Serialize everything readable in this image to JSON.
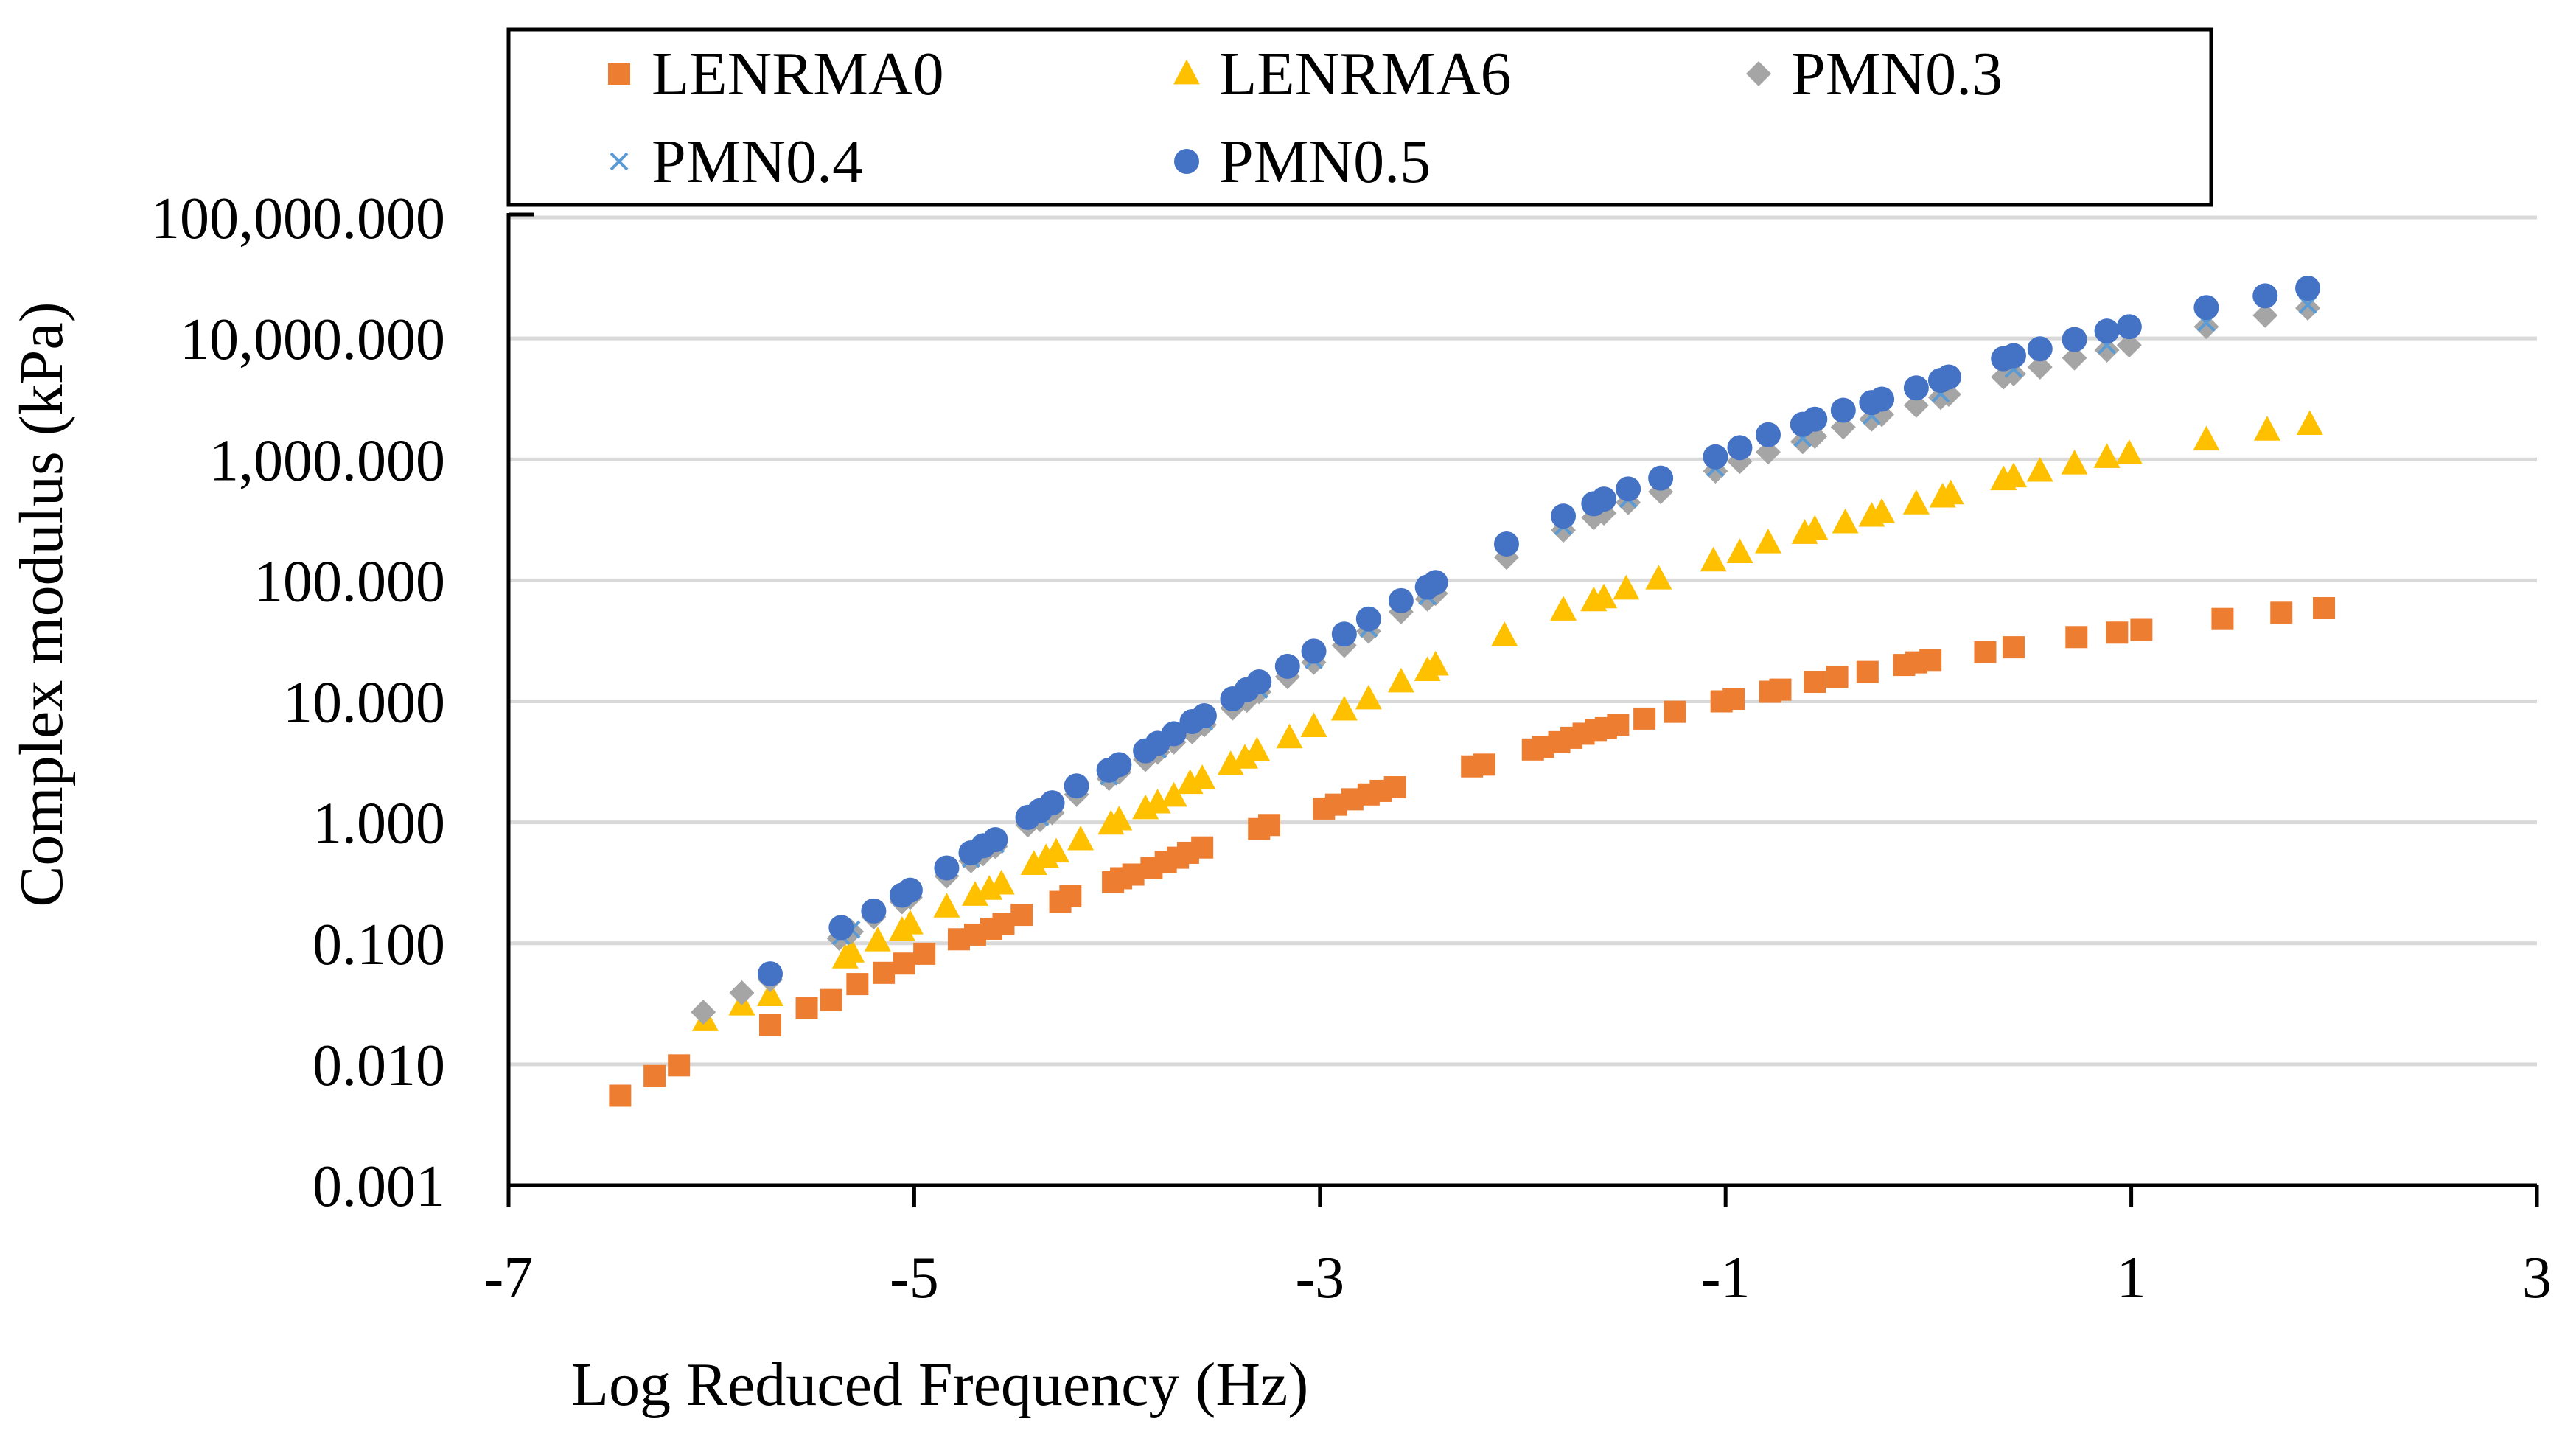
{
  "chart_data": {
    "type": "scatter",
    "title": "",
    "xlabel": "Log Reduced Frequency (Hz)",
    "ylabel": "Complex modulus (kPa)",
    "xlim": [
      -7,
      3
    ],
    "ylim": [
      0.001,
      100000
    ],
    "y_scale": "log",
    "grid": "horizontal",
    "legend_position": "top",
    "x_ticks": [
      -7,
      -5,
      -3,
      -1,
      1,
      3
    ],
    "x_tick_labels": [
      "-7",
      "-5",
      "-3",
      "-1",
      "1",
      "3"
    ],
    "y_ticks": [
      0.001,
      0.01,
      0.1,
      1,
      10,
      100,
      1000,
      10000,
      100000
    ],
    "y_tick_labels": [
      "0.001",
      "0.010",
      "0.100",
      "1.000",
      "10.000",
      "100.000",
      "1,000.000",
      "10,000.000",
      "100,000.000"
    ],
    "series": [
      {
        "name": "LENRMA0",
        "marker": "square",
        "color": "#ED7D31",
        "points": [
          [
            -6.45,
            0.0055
          ],
          [
            -6.28,
            0.008
          ],
          [
            -6.16,
            0.0098
          ],
          [
            -5.71,
            0.021
          ],
          [
            -5.53,
            0.029
          ],
          [
            -5.41,
            0.034
          ],
          [
            -5.28,
            0.046
          ],
          [
            -5.15,
            0.057
          ],
          [
            -5.05,
            0.068
          ],
          [
            -4.95,
            0.082
          ],
          [
            -4.78,
            0.108
          ],
          [
            -4.7,
            0.118
          ],
          [
            -4.62,
            0.132
          ],
          [
            -4.56,
            0.145
          ],
          [
            -4.47,
            0.172
          ],
          [
            -4.28,
            0.22
          ],
          [
            -4.23,
            0.245
          ],
          [
            -4.02,
            0.32
          ],
          [
            -3.98,
            0.345
          ],
          [
            -3.92,
            0.37
          ],
          [
            -3.83,
            0.42
          ],
          [
            -3.76,
            0.47
          ],
          [
            -3.7,
            0.51
          ],
          [
            -3.65,
            0.56
          ],
          [
            -3.58,
            0.62
          ],
          [
            -3.3,
            0.88
          ],
          [
            -3.25,
            0.95
          ],
          [
            -2.98,
            1.3
          ],
          [
            -2.92,
            1.4
          ],
          [
            -2.84,
            1.55
          ],
          [
            -2.76,
            1.7
          ],
          [
            -2.7,
            1.82
          ],
          [
            -2.63,
            1.95
          ],
          [
            -2.25,
            2.9
          ],
          [
            -2.19,
            3.0
          ],
          [
            -1.95,
            4.0
          ],
          [
            -1.9,
            4.2
          ],
          [
            -1.82,
            4.6
          ],
          [
            -1.76,
            5.0
          ],
          [
            -1.7,
            5.4
          ],
          [
            -1.64,
            5.8
          ],
          [
            -1.59,
            6.0
          ],
          [
            -1.53,
            6.4
          ],
          [
            -1.4,
            7.2
          ],
          [
            -1.25,
            8.2
          ],
          [
            -1.02,
            10.0
          ],
          [
            -0.96,
            10.5
          ],
          [
            -0.78,
            12.0
          ],
          [
            -0.73,
            12.5
          ],
          [
            -0.56,
            14.5
          ],
          [
            -0.45,
            16.0
          ],
          [
            -0.3,
            17.5
          ],
          [
            -0.12,
            20.0
          ],
          [
            -0.06,
            21.0
          ],
          [
            0.01,
            22.0
          ],
          [
            0.28,
            25.5
          ],
          [
            0.42,
            28.0
          ],
          [
            0.73,
            34.0
          ],
          [
            0.93,
            37.0
          ],
          [
            1.05,
            39.0
          ],
          [
            1.45,
            48.0
          ],
          [
            1.74,
            54.0
          ],
          [
            1.95,
            59.0
          ]
        ]
      },
      {
        "name": "LENRMA6",
        "marker": "triangle",
        "color": "#FFC000",
        "points": [
          [
            -6.03,
            0.023
          ],
          [
            -5.85,
            0.031
          ],
          [
            -5.71,
            0.037
          ],
          [
            -5.34,
            0.076
          ],
          [
            -5.31,
            0.085
          ],
          [
            -5.18,
            0.105
          ],
          [
            -5.06,
            0.128
          ],
          [
            -5.02,
            0.145
          ],
          [
            -4.84,
            0.2
          ],
          [
            -4.7,
            0.25
          ],
          [
            -4.63,
            0.28
          ],
          [
            -4.57,
            0.31
          ],
          [
            -4.41,
            0.45
          ],
          [
            -4.35,
            0.51
          ],
          [
            -4.3,
            0.57
          ],
          [
            -4.18,
            0.72
          ],
          [
            -4.03,
            0.97
          ],
          [
            -3.99,
            1.05
          ],
          [
            -3.86,
            1.3
          ],
          [
            -3.8,
            1.45
          ],
          [
            -3.72,
            1.65
          ],
          [
            -3.64,
            2.1
          ],
          [
            -3.58,
            2.3
          ],
          [
            -3.44,
            3.0
          ],
          [
            -3.37,
            3.4
          ],
          [
            -3.31,
            3.9
          ],
          [
            -3.15,
            5.0
          ],
          [
            -3.03,
            6.2
          ],
          [
            -2.88,
            8.5
          ],
          [
            -2.76,
            10.5
          ],
          [
            -2.6,
            14.5
          ],
          [
            -2.47,
            18.0
          ],
          [
            -2.43,
            20.0
          ],
          [
            -2.09,
            35.0
          ],
          [
            -1.8,
            57.0
          ],
          [
            -1.65,
            68.0
          ],
          [
            -1.6,
            72.0
          ],
          [
            -1.49,
            85.0
          ],
          [
            -1.33,
            103.0
          ],
          [
            -1.06,
            145.0
          ],
          [
            -0.93,
            170.0
          ],
          [
            -0.79,
            205.0
          ],
          [
            -0.61,
            245.0
          ],
          [
            -0.56,
            265.0
          ],
          [
            -0.41,
            300.0
          ],
          [
            -0.28,
            340.0
          ],
          [
            -0.23,
            365.0
          ],
          [
            -0.06,
            430.0
          ],
          [
            0.07,
            490.0
          ],
          [
            0.11,
            520.0
          ],
          [
            0.37,
            680.0
          ],
          [
            0.42,
            720.0
          ],
          [
            0.55,
            800.0
          ],
          [
            0.72,
            920.0
          ],
          [
            0.88,
            1040.0
          ],
          [
            0.99,
            1120.0
          ],
          [
            1.37,
            1450.0
          ],
          [
            1.67,
            1750.0
          ],
          [
            1.88,
            1950.0
          ]
        ]
      },
      {
        "name": "PMN0.3",
        "marker": "diamond",
        "color": "#A5A5A5",
        "points": [
          [
            -6.04,
            0.027
          ],
          [
            -5.85,
            0.039
          ],
          [
            -5.71,
            0.05
          ],
          [
            -5.37,
            0.11
          ],
          [
            -5.31,
            0.125
          ],
          [
            -5.2,
            0.165
          ],
          [
            -5.06,
            0.22
          ],
          [
            -5.02,
            0.24
          ],
          [
            -4.84,
            0.36
          ],
          [
            -4.72,
            0.48
          ],
          [
            -4.66,
            0.55
          ],
          [
            -4.6,
            0.63
          ],
          [
            -4.44,
            0.95
          ],
          [
            -4.38,
            1.05
          ],
          [
            -4.32,
            1.2
          ],
          [
            -4.2,
            1.7
          ],
          [
            -4.04,
            2.3
          ],
          [
            -3.99,
            2.6
          ],
          [
            -3.86,
            3.3
          ],
          [
            -3.8,
            3.8
          ],
          [
            -3.72,
            4.6
          ],
          [
            -3.63,
            5.6
          ],
          [
            -3.57,
            6.4
          ],
          [
            -3.43,
            8.8
          ],
          [
            -3.36,
            10.2
          ],
          [
            -3.3,
            12.0
          ],
          [
            -3.16,
            16.0
          ],
          [
            -3.03,
            21.0
          ],
          [
            -2.88,
            29.0
          ],
          [
            -2.76,
            38.0
          ],
          [
            -2.6,
            55.0
          ],
          [
            -2.47,
            70.0
          ],
          [
            -2.43,
            78.0
          ],
          [
            -2.08,
            155.0
          ],
          [
            -1.8,
            260.0
          ],
          [
            -1.65,
            330.0
          ],
          [
            -1.6,
            360.0
          ],
          [
            -1.48,
            440.0
          ],
          [
            -1.32,
            540.0
          ],
          [
            -1.05,
            800.0
          ],
          [
            -0.93,
            960.0
          ],
          [
            -0.79,
            1150.0
          ],
          [
            -0.62,
            1400.0
          ],
          [
            -0.56,
            1550.0
          ],
          [
            -0.42,
            1850.0
          ],
          [
            -0.28,
            2150.0
          ],
          [
            -0.23,
            2350.0
          ],
          [
            -0.06,
            2800.0
          ],
          [
            0.06,
            3250.0
          ],
          [
            0.1,
            3450.0
          ],
          [
            0.37,
            4800.0
          ],
          [
            0.42,
            5100.0
          ],
          [
            0.55,
            5800.0
          ],
          [
            0.72,
            6900.0
          ],
          [
            0.88,
            8000.0
          ],
          [
            0.99,
            8800.0
          ],
          [
            1.37,
            12500.0
          ],
          [
            1.66,
            15500.0
          ],
          [
            1.87,
            17800.0
          ]
        ]
      },
      {
        "name": "PMN0.4",
        "marker": "x",
        "color": "#5B9BD5",
        "points": [
          [
            -5.36,
            0.115
          ],
          [
            -5.31,
            0.13
          ],
          [
            -5.06,
            0.24
          ],
          [
            -4.72,
            0.5
          ],
          [
            -4.6,
            0.66
          ],
          [
            -4.38,
            1.1
          ],
          [
            -4.04,
            2.4
          ],
          [
            -3.8,
            4.0
          ],
          [
            -3.57,
            6.8
          ],
          [
            -3.3,
            12.5
          ],
          [
            -3.03,
            22.0
          ],
          [
            -2.76,
            40.0
          ],
          [
            -2.47,
            74.0
          ],
          [
            -1.8,
            280.0
          ],
          [
            -1.48,
            470.0
          ],
          [
            -1.05,
            850.0
          ],
          [
            -0.62,
            1500.0
          ],
          [
            -0.28,
            2300.0
          ],
          [
            0.06,
            3500.0
          ],
          [
            0.42,
            5600.0
          ],
          [
            0.88,
            8800.0
          ],
          [
            1.37,
            13500.0
          ],
          [
            1.87,
            19000.0
          ]
        ]
      },
      {
        "name": "PMN0.5",
        "marker": "circle",
        "color": "#4472C4",
        "points": [
          [
            -5.71,
            0.056
          ],
          [
            -5.36,
            0.135
          ],
          [
            -5.2,
            0.185
          ],
          [
            -5.06,
            0.25
          ],
          [
            -5.02,
            0.275
          ],
          [
            -4.84,
            0.42
          ],
          [
            -4.72,
            0.56
          ],
          [
            -4.66,
            0.64
          ],
          [
            -4.6,
            0.72
          ],
          [
            -4.44,
            1.1
          ],
          [
            -4.38,
            1.25
          ],
          [
            -4.32,
            1.45
          ],
          [
            -4.2,
            2.0
          ],
          [
            -4.04,
            2.7
          ],
          [
            -3.99,
            3.0
          ],
          [
            -3.86,
            3.9
          ],
          [
            -3.8,
            4.5
          ],
          [
            -3.72,
            5.4
          ],
          [
            -3.63,
            6.8
          ],
          [
            -3.57,
            7.6
          ],
          [
            -3.43,
            10.5
          ],
          [
            -3.36,
            12.5
          ],
          [
            -3.3,
            14.5
          ],
          [
            -3.16,
            19.5
          ],
          [
            -3.03,
            26.0
          ],
          [
            -2.88,
            36.0
          ],
          [
            -2.76,
            48.0
          ],
          [
            -2.6,
            68.0
          ],
          [
            -2.47,
            88.0
          ],
          [
            -2.43,
            96.0
          ],
          [
            -2.08,
            200.0
          ],
          [
            -1.8,
            340.0
          ],
          [
            -1.65,
            430.0
          ],
          [
            -1.6,
            470.0
          ],
          [
            -1.48,
            570.0
          ],
          [
            -1.32,
            700.0
          ],
          [
            -1.05,
            1050.0
          ],
          [
            -0.93,
            1250.0
          ],
          [
            -0.79,
            1600.0
          ],
          [
            -0.62,
            1950.0
          ],
          [
            -0.56,
            2150.0
          ],
          [
            -0.42,
            2550.0
          ],
          [
            -0.28,
            2950.0
          ],
          [
            -0.23,
            3150.0
          ],
          [
            -0.06,
            3900.0
          ],
          [
            0.06,
            4500.0
          ],
          [
            0.1,
            4800.0
          ],
          [
            0.37,
            6800.0
          ],
          [
            0.42,
            7200.0
          ],
          [
            0.55,
            8200.0
          ],
          [
            0.72,
            9800.0
          ],
          [
            0.88,
            11500.0
          ],
          [
            0.99,
            12500.0
          ],
          [
            1.37,
            18000.0
          ],
          [
            1.66,
            22500.0
          ],
          [
            1.87,
            26000.0
          ]
        ]
      }
    ]
  }
}
